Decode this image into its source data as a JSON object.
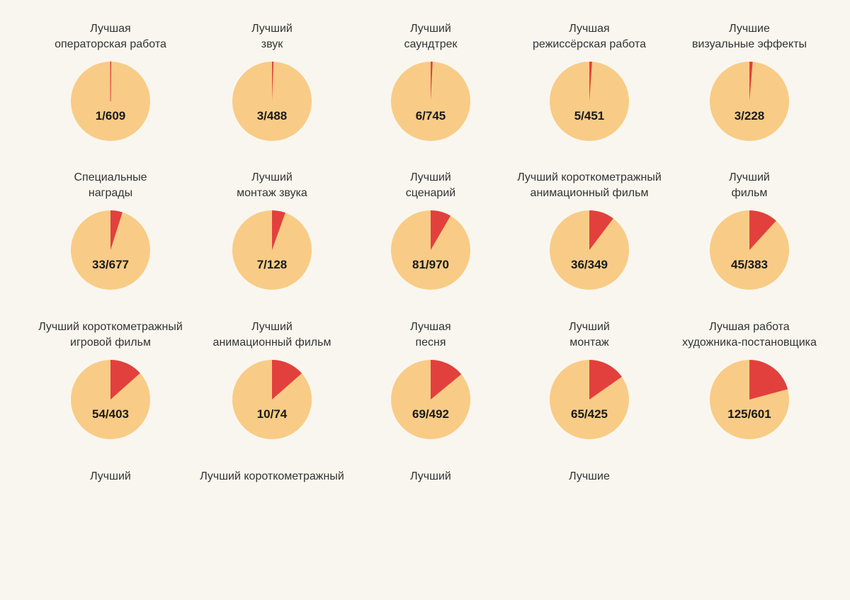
{
  "colors": {
    "base": "#f8cc86",
    "highlight": "#e2403d",
    "background": "#f9f6ef"
  },
  "chart_data": {
    "type": "pie",
    "panels": [
      {
        "label": [
          "Лучшая",
          "операторская работа"
        ],
        "numerator": 1,
        "denominator": 609,
        "ratio_text": "1/609"
      },
      {
        "label": [
          "Лучший",
          "звук"
        ],
        "numerator": 3,
        "denominator": 488,
        "ratio_text": "3/488"
      },
      {
        "label": [
          "Лучший",
          "саундтрек"
        ],
        "numerator": 6,
        "denominator": 745,
        "ratio_text": "6/745"
      },
      {
        "label": [
          "Лучшая",
          "режиссёрская работа"
        ],
        "numerator": 5,
        "denominator": 451,
        "ratio_text": "5/451"
      },
      {
        "label": [
          "Лучшие",
          "визуальные эффекты"
        ],
        "numerator": 3,
        "denominator": 228,
        "ratio_text": "3/228"
      },
      {
        "label": [
          "Специальные",
          "награды"
        ],
        "numerator": 33,
        "denominator": 677,
        "ratio_text": "33/677"
      },
      {
        "label": [
          "Лучший",
          "монтаж звука"
        ],
        "numerator": 7,
        "denominator": 128,
        "ratio_text": "7/128"
      },
      {
        "label": [
          "Лучший",
          "сценарий"
        ],
        "numerator": 81,
        "denominator": 970,
        "ratio_text": "81/970"
      },
      {
        "label": [
          "Лучший короткометражный",
          "анимационный фильм"
        ],
        "numerator": 36,
        "denominator": 349,
        "ratio_text": "36/349"
      },
      {
        "label": [
          "Лучший",
          "фильм"
        ],
        "numerator": 45,
        "denominator": 383,
        "ratio_text": "45/383"
      },
      {
        "label": [
          "Лучший короткометражный",
          "игровой фильм"
        ],
        "numerator": 54,
        "denominator": 403,
        "ratio_text": "54/403"
      },
      {
        "label": [
          "Лучший",
          "анимационный фильм"
        ],
        "numerator": 10,
        "denominator": 74,
        "ratio_text": "10/74"
      },
      {
        "label": [
          "Лучшая",
          "песня"
        ],
        "numerator": 69,
        "denominator": 492,
        "ratio_text": "69/492"
      },
      {
        "label": [
          "Лучший",
          "монтаж"
        ],
        "numerator": 65,
        "denominator": 425,
        "ratio_text": "65/425"
      },
      {
        "label": [
          "Лучшая работа",
          "художника-постановщика"
        ],
        "numerator": 125,
        "denominator": 601,
        "ratio_text": "125/601"
      },
      {
        "label": [
          "Лучший"
        ],
        "numerator": null,
        "denominator": null,
        "ratio_text": ""
      },
      {
        "label": [
          "Лучший короткометражный"
        ],
        "numerator": null,
        "denominator": null,
        "ratio_text": ""
      },
      {
        "label": [
          "Лучший"
        ],
        "numerator": null,
        "denominator": null,
        "ratio_text": ""
      },
      {
        "label": [
          "Лучшие"
        ],
        "numerator": null,
        "denominator": null,
        "ratio_text": ""
      }
    ]
  }
}
